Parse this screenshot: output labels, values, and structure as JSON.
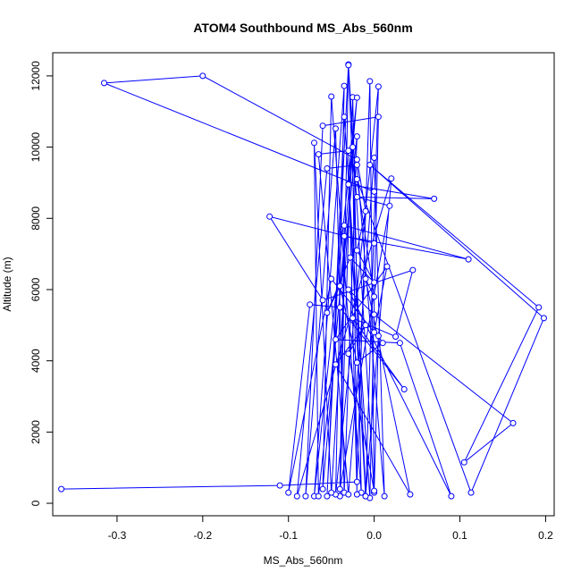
{
  "chart_data": {
    "type": "line",
    "title": "ATOM4 Southbound MS_Abs_560nm",
    "xlabel": "MS_Abs_560nm",
    "ylabel": "Altitude (m)",
    "xlim": [
      -0.375,
      0.21
    ],
    "ylim": [
      -350,
      12650
    ],
    "x_ticks": [
      "-0.3",
      "-0.2",
      "-0.1",
      "0.0",
      "0.1",
      "0.2"
    ],
    "x_tick_values": [
      -0.3,
      -0.2,
      -0.1,
      0.0,
      0.1,
      0.2
    ],
    "y_ticks": [
      "0",
      "2000",
      "4000",
      "6000",
      "8000",
      "10000",
      "12000"
    ],
    "y_tick_values": [
      0,
      2000,
      4000,
      6000,
      8000,
      10000,
      12000
    ],
    "grid": false,
    "legend": "none",
    "color": "#0000ff",
    "marker": "open-circle",
    "series": [
      {
        "points": [
          [
            -0.365,
            400
          ],
          [
            -0.11,
            500
          ],
          [
            -0.02,
            600
          ],
          [
            -0.005,
            11850
          ],
          [
            0.0,
            300
          ],
          [
            -0.03,
            12320
          ],
          [
            -0.04,
            200
          ],
          [
            -0.025,
            11400
          ],
          [
            -0.015,
            300
          ],
          [
            -0.05,
            11420
          ],
          [
            -0.06,
            400
          ],
          [
            -0.02,
            11390
          ],
          [
            -0.07,
            200
          ],
          [
            -0.035,
            11720
          ],
          [
            -0.045,
            250
          ],
          [
            0.005,
            11700
          ],
          [
            -0.01,
            200
          ],
          [
            -0.03,
            12300
          ],
          [
            -0.055,
            200
          ],
          [
            -0.035,
            10850
          ],
          [
            -0.005,
            150
          ],
          [
            0.005,
            10850
          ],
          [
            -0.06,
            10600
          ],
          [
            -0.08,
            200
          ],
          [
            -0.045,
            10520
          ],
          [
            -0.035,
            300
          ],
          [
            -0.02,
            10300
          ],
          [
            -0.065,
            200
          ],
          [
            -0.07,
            10120
          ],
          [
            -0.05,
            300
          ],
          [
            -0.025,
            10000
          ],
          [
            -0.02,
            250
          ],
          [
            -0.03,
            9900
          ],
          [
            -0.065,
            9800
          ],
          [
            -0.03,
            250
          ],
          [
            0.0,
            9700
          ],
          [
            0.012,
            200
          ],
          [
            -0.02,
            9500
          ],
          [
            -0.055,
            9400
          ],
          [
            -0.09,
            200
          ],
          [
            0.02,
            9120
          ],
          [
            -0.01,
            200
          ],
          [
            -0.03,
            8950
          ],
          [
            0.07,
            8550
          ],
          [
            -0.02,
            8600
          ],
          [
            0.018,
            8350
          ],
          [
            -0.04,
            400
          ],
          [
            -0.035,
            7800
          ],
          [
            0.11,
            6850
          ],
          [
            -0.035,
            7500
          ],
          [
            0.0,
            7300
          ],
          [
            -0.122,
            8050
          ],
          [
            -0.06,
            5700
          ],
          [
            0.045,
            6550
          ],
          [
            0.025,
            4680
          ],
          [
            -0.025,
            5200
          ],
          [
            0.035,
            3200
          ],
          [
            -0.04,
            5500
          ],
          [
            -0.075,
            5580
          ],
          [
            -0.1,
            300
          ],
          [
            -0.05,
            6300
          ],
          [
            0.0,
            4800
          ],
          [
            0.015,
            6650
          ],
          [
            -0.045,
            4600
          ],
          [
            0.03,
            4500
          ],
          [
            0.09,
            200
          ],
          [
            -0.03,
            6000
          ],
          [
            0.0,
            5300
          ],
          [
            0.162,
            2250
          ],
          [
            0.105,
            1150
          ],
          [
            0.192,
            5500
          ],
          [
            -0.005,
            9500
          ],
          [
            0.198,
            5200
          ],
          [
            0.113,
            300
          ],
          [
            -0.02,
            9100
          ],
          [
            0.0,
            5800
          ],
          [
            -0.01,
            6300
          ],
          [
            0.042,
            250
          ],
          [
            -0.045,
            3900
          ],
          [
            -0.01,
            5000
          ],
          [
            -0.03,
            4200
          ],
          [
            0.0,
            350
          ],
          [
            0.005,
            4700
          ],
          [
            0.01,
            4500
          ],
          [
            -0.02,
            3950
          ],
          [
            -0.04,
            6100
          ],
          [
            -0.055,
            5350
          ],
          [
            -0.028,
            6900
          ],
          [
            0.0,
            6200
          ],
          [
            -0.02,
            7100
          ],
          [
            -0.01,
            8200
          ],
          [
            -0.02,
            9650
          ],
          [
            -0.2,
            12000
          ],
          [
            -0.315,
            11800
          ],
          [
            0.0,
            8750
          ]
        ]
      }
    ]
  }
}
